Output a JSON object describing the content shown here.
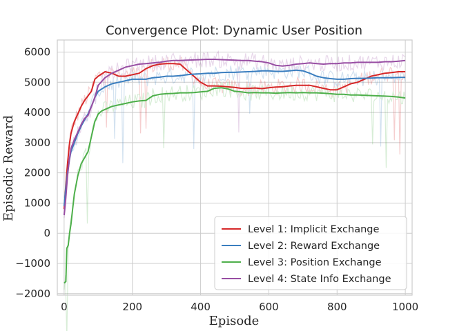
{
  "chart_data": {
    "type": "line",
    "title": "Convergence Plot: Dynamic User Position",
    "xlabel": "Episode",
    "ylabel": "Episodic Reward",
    "xlim": [
      -20,
      1020
    ],
    "ylim": [
      -2050,
      6400
    ],
    "xticks": [
      0,
      200,
      400,
      600,
      800,
      1000
    ],
    "yticks": [
      -2000,
      -1000,
      0,
      1000,
      2000,
      3000,
      4000,
      5000,
      6000
    ],
    "grid": true,
    "legend_position": "lower-right",
    "raw_traces_shown": true,
    "series": [
      {
        "name": "Level 1: Implicit Exchange",
        "color": "#d62728",
        "x": [
          0,
          5,
          10,
          15,
          20,
          25,
          30,
          40,
          50,
          60,
          70,
          80,
          90,
          100,
          120,
          140,
          160,
          180,
          200,
          220,
          240,
          260,
          280,
          300,
          320,
          340,
          360,
          380,
          400,
          420,
          440,
          460,
          480,
          500,
          520,
          540,
          560,
          580,
          600,
          620,
          640,
          660,
          680,
          700,
          720,
          740,
          760,
          780,
          800,
          820,
          840,
          860,
          880,
          900,
          920,
          940,
          960,
          980,
          1000
        ],
        "y": [
          800,
          1600,
          2300,
          2900,
          3300,
          3500,
          3700,
          3950,
          4200,
          4400,
          4550,
          4700,
          5100,
          5200,
          5350,
          5300,
          5200,
          5200,
          5250,
          5300,
          5450,
          5550,
          5600,
          5620,
          5620,
          5600,
          5400,
          5200,
          5000,
          4880,
          4880,
          4870,
          4850,
          4830,
          4800,
          4800,
          4810,
          4790,
          4820,
          4840,
          4850,
          4880,
          4900,
          4900,
          4900,
          4850,
          4800,
          4750,
          4750,
          4850,
          4950,
          5000,
          5100,
          5200,
          5250,
          5300,
          5320,
          5350,
          5350
        ]
      },
      {
        "name": "Level 2: Reward Exchange",
        "color": "#3a7ebf",
        "x": [
          0,
          5,
          10,
          15,
          20,
          30,
          40,
          50,
          60,
          70,
          80,
          90,
          100,
          120,
          140,
          160,
          180,
          200,
          220,
          240,
          260,
          280,
          300,
          320,
          340,
          360,
          380,
          400,
          420,
          440,
          460,
          480,
          500,
          520,
          540,
          560,
          580,
          600,
          620,
          640,
          660,
          680,
          700,
          720,
          740,
          760,
          780,
          800,
          820,
          840,
          860,
          880,
          900,
          920,
          940,
          960,
          980,
          1000
        ],
        "y": [
          900,
          1500,
          2000,
          2400,
          2700,
          3000,
          3300,
          3550,
          3750,
          3950,
          4200,
          4500,
          4700,
          4850,
          4950,
          5000,
          5050,
          5100,
          5100,
          5100,
          5150,
          5170,
          5200,
          5200,
          5220,
          5250,
          5270,
          5280,
          5300,
          5300,
          5320,
          5330,
          5330,
          5340,
          5350,
          5360,
          5380,
          5380,
          5360,
          5360,
          5380,
          5400,
          5380,
          5300,
          5200,
          5150,
          5120,
          5100,
          5100,
          5120,
          5130,
          5130,
          5140,
          5150,
          5150,
          5150,
          5160,
          5160
        ]
      },
      {
        "name": "Level 3: Position Exchange",
        "color": "#4daf4a",
        "x": [
          0,
          5,
          8,
          12,
          16,
          20,
          25,
          30,
          40,
          50,
          60,
          70,
          80,
          90,
          100,
          110,
          120,
          140,
          160,
          180,
          200,
          220,
          240,
          260,
          280,
          300,
          320,
          340,
          360,
          380,
          400,
          420,
          440,
          460,
          480,
          500,
          520,
          540,
          560,
          580,
          600,
          620,
          640,
          660,
          680,
          700,
          720,
          740,
          760,
          780,
          800,
          820,
          840,
          860,
          880,
          900,
          920,
          940,
          960,
          980,
          1000
        ],
        "y": [
          -1650,
          -1600,
          -500,
          -400,
          0,
          300,
          800,
          1300,
          1900,
          2300,
          2500,
          2700,
          3200,
          3700,
          3950,
          4050,
          4100,
          4200,
          4250,
          4300,
          4350,
          4380,
          4400,
          4550,
          4600,
          4620,
          4630,
          4650,
          4650,
          4660,
          4680,
          4700,
          4800,
          4820,
          4780,
          4700,
          4680,
          4650,
          4660,
          4650,
          4650,
          4640,
          4650,
          4660,
          4650,
          4660,
          4650,
          4650,
          4640,
          4620,
          4600,
          4600,
          4580,
          4580,
          4570,
          4560,
          4550,
          4540,
          4530,
          4510,
          4480
        ]
      },
      {
        "name": "Level 4: State Info Exchange",
        "color": "#984ea3",
        "x": [
          0,
          5,
          10,
          15,
          20,
          30,
          40,
          50,
          60,
          70,
          80,
          90,
          100,
          120,
          140,
          160,
          180,
          200,
          220,
          240,
          260,
          280,
          300,
          320,
          340,
          360,
          380,
          400,
          420,
          440,
          460,
          480,
          500,
          520,
          540,
          560,
          580,
          600,
          620,
          640,
          660,
          680,
          700,
          720,
          740,
          760,
          780,
          800,
          820,
          840,
          860,
          880,
          900,
          920,
          940,
          960,
          980,
          1000
        ],
        "y": [
          600,
          1200,
          1900,
          2400,
          2800,
          3100,
          3350,
          3600,
          3800,
          3900,
          4200,
          4500,
          4900,
          5150,
          5300,
          5400,
          5500,
          5550,
          5600,
          5620,
          5640,
          5660,
          5700,
          5720,
          5720,
          5730,
          5740,
          5750,
          5760,
          5760,
          5750,
          5740,
          5730,
          5720,
          5720,
          5700,
          5680,
          5640,
          5560,
          5540,
          5560,
          5600,
          5620,
          5640,
          5620,
          5600,
          5620,
          5620,
          5640,
          5640,
          5660,
          5660,
          5660,
          5660,
          5680,
          5680,
          5700,
          5720
        ]
      }
    ]
  }
}
